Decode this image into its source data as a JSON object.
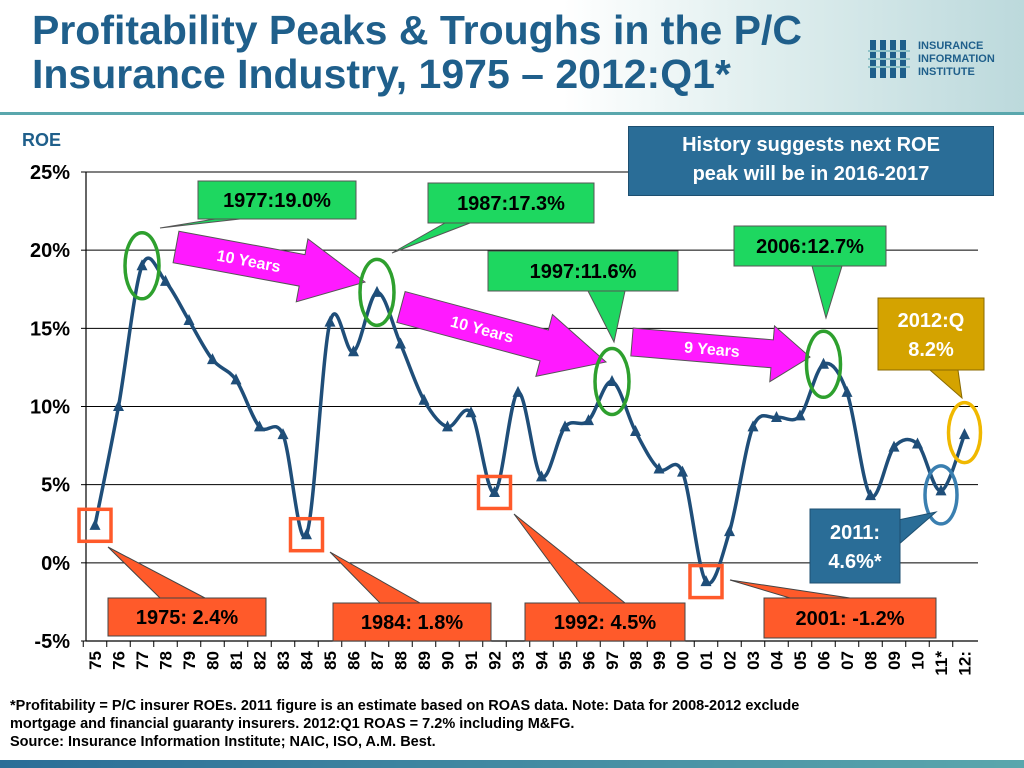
{
  "header": {
    "title_line1": "Profitability Peaks & Troughs in the P/C",
    "title_line2": "Insurance Industry, 1975 – 2012:Q1*",
    "logo_line1": "INSURANCE",
    "logo_line2": "INFORMATION",
    "logo_line3": "INSTITUTE"
  },
  "callout": {
    "line1": "History suggests next ROE",
    "line2": "peak will be in 2016-2017"
  },
  "chart_data": {
    "type": "line",
    "ylabel": "ROE",
    "ylim": [
      -5,
      25
    ],
    "yticks": [
      "-5%",
      "0%",
      "5%",
      "10%",
      "15%",
      "20%",
      "25%"
    ],
    "grid": true,
    "categories": [
      "75",
      "76",
      "77",
      "78",
      "79",
      "80",
      "81",
      "82",
      "83",
      "84",
      "85",
      "86",
      "87",
      "88",
      "89",
      "90",
      "91",
      "92",
      "93",
      "94",
      "95",
      "96",
      "97",
      "98",
      "99",
      "00",
      "01",
      "02",
      "03",
      "04",
      "05",
      "06",
      "07",
      "08",
      "09",
      "10",
      "11*",
      "12:"
    ],
    "series": [
      {
        "name": "",
        "color": "#1f4e79",
        "values": [
          2.4,
          10.0,
          19.0,
          18.0,
          15.5,
          13.0,
          11.7,
          8.7,
          8.2,
          1.8,
          15.4,
          13.5,
          17.3,
          14.0,
          10.4,
          8.7,
          9.6,
          4.5,
          10.9,
          5.5,
          8.7,
          9.1,
          11.6,
          8.4,
          6.0,
          5.8,
          -1.2,
          2.0,
          8.7,
          9.3,
          9.4,
          12.7,
          10.9,
          4.3,
          7.4,
          7.6,
          4.6,
          8.2
        ]
      }
    ],
    "peaks": [
      {
        "label": "1977:19.0%",
        "year": "77",
        "value": 19.0
      },
      {
        "label": "1987:17.3%",
        "year": "87",
        "value": 17.3
      },
      {
        "label": "1997:11.6%",
        "year": "97",
        "value": 11.6
      },
      {
        "label": "2006:12.7%",
        "year": "06",
        "value": 12.7
      }
    ],
    "troughs": [
      {
        "label": "1975: 2.4%",
        "year": "75",
        "value": 2.4
      },
      {
        "label": "1984: 1.8%",
        "year": "84",
        "value": 1.8
      },
      {
        "label": "1992: 4.5%",
        "year": "92",
        "value": 4.5
      },
      {
        "label": "2001: -1.2%",
        "year": "01",
        "value": -1.2
      }
    ],
    "estimates": [
      {
        "line1": "2011:",
        "line2": "4.6%*",
        "year": "11*",
        "value": 4.6
      },
      {
        "line1": "2012:Q",
        "line2": "8.2%",
        "year": "12:",
        "value": 8.2
      }
    ],
    "intervals": [
      {
        "label": "10 Years",
        "from": "77",
        "to": "87"
      },
      {
        "label": "10 Years",
        "from": "87",
        "to": "97"
      },
      {
        "label": "9 Years",
        "from": "97",
        "to": "06"
      }
    ],
    "colors": {
      "line": "#1f4e79",
      "peak_box": "#1ed760",
      "peak_ring": "#2ea02e",
      "trough_box": "#ff5a2a",
      "arrow": "#ff1aff",
      "estimate_2011": "#2a6d97",
      "estimate_2012": "#d4a300",
      "ring_2011": "#3a7fb0",
      "ring_2012": "#f0b800"
    }
  },
  "footnote": {
    "line1": "*Profitability =  P/C insurer ROEs. 2011 figure is an estimate based on ROAS data.  Note:  Data for 2008-2012 exclude",
    "line2": "mortgage and financial guaranty insurers.  2012:Q1 ROAS = 7.2% including M&FG.",
    "line3": "Source:  Insurance Information Institute; NAIC, ISO, A.M. Best."
  }
}
